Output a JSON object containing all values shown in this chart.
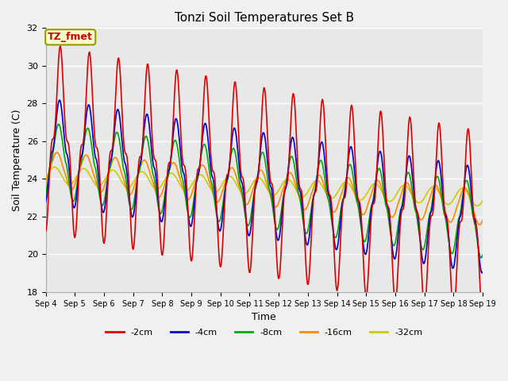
{
  "title": "Tonzi Soil Temperatures Set B",
  "xlabel": "Time",
  "ylabel": "Soil Temperature (C)",
  "ylim": [
    18,
    32
  ],
  "yticks": [
    18,
    20,
    22,
    24,
    26,
    28,
    30,
    32
  ],
  "annotation_text": "TZ_fmet",
  "annotation_color": "#cc0000",
  "annotation_bg": "#ffffcc",
  "annotation_border": "#999900",
  "line_colors": {
    "-2cm": "#dd0000",
    "-4cm": "#0000cc",
    "-8cm": "#00aa00",
    "-16cm": "#ff8800",
    "-32cm": "#cccc00"
  },
  "legend_labels": [
    "-2cm",
    "-4cm",
    "-8cm",
    "-16cm",
    "-32cm"
  ],
  "xtick_labels": [
    "Sep 4",
    "Sep 5",
    "Sep 6",
    "Sep 7",
    "Sep 8",
    "Sep 9",
    "Sep 10",
    "Sep 11",
    "Sep 12",
    "Sep 13",
    "Sep 14",
    "Sep 15",
    "Sep 16",
    "Sep 17",
    "Sep 18",
    "Sep 19"
  ],
  "bg_color": "#e8e8e8",
  "grid_color": "#ffffff",
  "num_days": 15,
  "pts_per_day": 48,
  "figwidth": 6.4,
  "figheight": 4.8,
  "dpi": 100
}
